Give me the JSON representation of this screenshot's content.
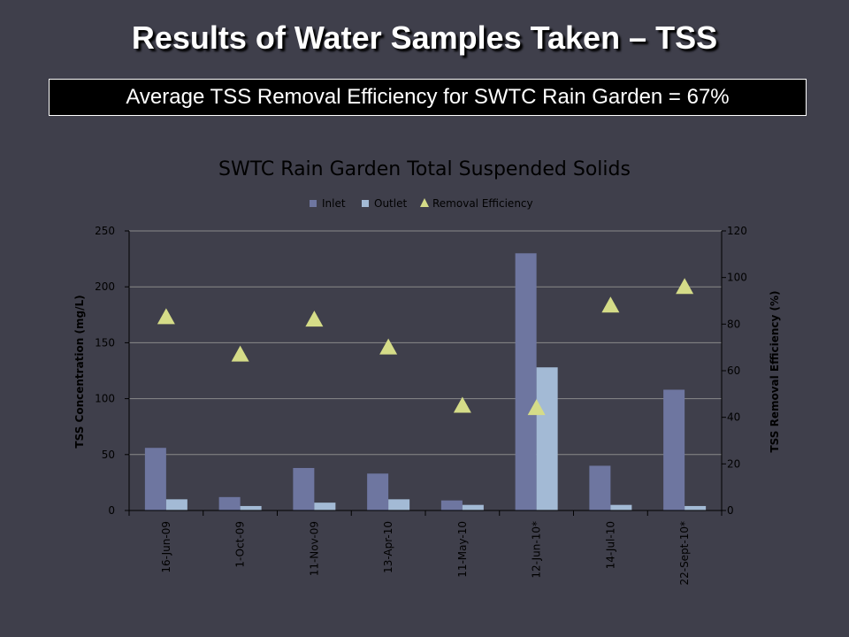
{
  "slide": {
    "title": "Results of Water Samples Taken – TSS",
    "summary": "Average TSS Removal Efficiency for SWTC Rain Garden = 67%"
  },
  "colors": {
    "background": "#3f3f4b",
    "inlet": "#6e76a0",
    "outlet": "#a3bad5",
    "removal": "#d5dc88",
    "text": "#000000"
  },
  "chart_data": {
    "type": "bar",
    "title": "SWTC Rain Garden Total Suspended Solids",
    "categories": [
      "16-Jun-09",
      "1-Oct-09",
      "11-Nov-09",
      "13-Apr-10",
      "11-May-10",
      "12-Jun-10*",
      "14-Jul-10",
      "22-Sept-10*"
    ],
    "series": [
      {
        "name": "Inlet",
        "axis": "left",
        "mark": "bar",
        "values": [
          56,
          12,
          38,
          33,
          9,
          230,
          40,
          108
        ]
      },
      {
        "name": "Outlet",
        "axis": "left",
        "mark": "bar",
        "values": [
          10,
          4,
          7,
          10,
          5,
          128,
          5,
          4
        ]
      },
      {
        "name": "Removal Efficiency",
        "axis": "right",
        "mark": "triangle",
        "values": [
          83,
          67,
          82,
          70,
          45,
          44,
          88,
          96
        ]
      }
    ],
    "ylabel": "TSS  Concentration (mg/L)",
    "y2label": "TSS  Removal Efficiency (%)",
    "xlabel": "",
    "ylim": [
      0,
      250
    ],
    "y2lim": [
      0,
      120
    ],
    "yticks": [
      0,
      50,
      100,
      150,
      200,
      250
    ],
    "y2ticks": [
      0,
      20,
      40,
      60,
      80,
      100,
      120
    ],
    "grid": true,
    "legend_position": "top"
  }
}
